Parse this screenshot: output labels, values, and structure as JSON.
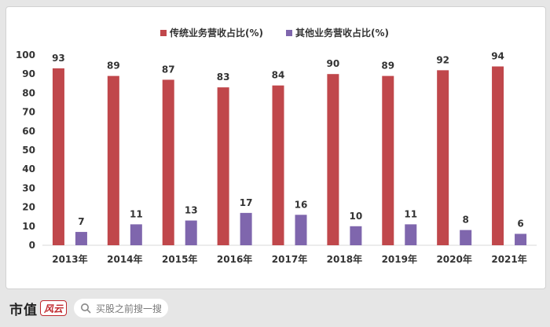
{
  "chart_data": {
    "type": "bar",
    "categories": [
      "2013年",
      "2014年",
      "2015年",
      "2016年",
      "2017年",
      "2018年",
      "2019年",
      "2020年",
      "2021年"
    ],
    "series": [
      {
        "name": "传统业务营收占比(%)",
        "color": "#c0474b",
        "values": [
          93,
          89,
          87,
          83,
          84,
          90,
          89,
          92,
          94
        ]
      },
      {
        "name": "其他业务营收占比(%)",
        "color": "#7f66ad",
        "values": [
          7,
          11,
          13,
          17,
          16,
          10,
          11,
          8,
          6
        ]
      }
    ],
    "ylim": [
      0,
      100
    ],
    "yticks": [
      0,
      10,
      20,
      30,
      40,
      50,
      60,
      70,
      80,
      90,
      100
    ],
    "xlabel": "",
    "ylabel": "",
    "grid": false,
    "legend": "top-center"
  },
  "footer": {
    "brand": "市值",
    "brand_mark": "风云",
    "search_placeholder": "买股之前搜一搜"
  },
  "icons": {
    "search": "search-icon"
  }
}
